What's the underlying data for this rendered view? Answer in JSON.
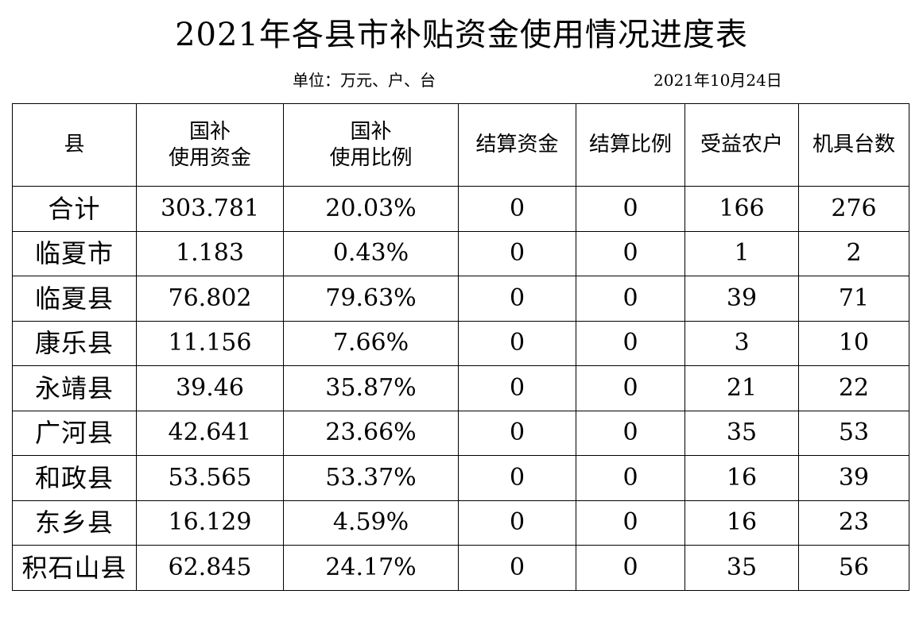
{
  "header": {
    "title": "2021年各县市补贴资金使用情况进度表",
    "unit": "单位：万元、户、台",
    "date": "2021年10月24日"
  },
  "columns": {
    "county": "县",
    "subsidy_used_line1": "国补",
    "subsidy_used_line2": "使用资金",
    "subsidy_ratio_line1": "国补",
    "subsidy_ratio_line2": "使用比例",
    "settled_funds": "结算资金",
    "settled_ratio": "结算比例",
    "beneficiary_households": "受益农户",
    "machine_count": "机具台数"
  },
  "rows": [
    {
      "county": "合计",
      "subsidy_used": "303.781",
      "subsidy_ratio": "20.03%",
      "settled_funds": "0",
      "settled_ratio": "0",
      "households": "166",
      "machines": "276"
    },
    {
      "county": "临夏市",
      "subsidy_used": "1.183",
      "subsidy_ratio": "0.43%",
      "settled_funds": "0",
      "settled_ratio": "0",
      "households": "1",
      "machines": "2"
    },
    {
      "county": "临夏县",
      "subsidy_used": "76.802",
      "subsidy_ratio": "79.63%",
      "settled_funds": "0",
      "settled_ratio": "0",
      "households": "39",
      "machines": "71"
    },
    {
      "county": "康乐县",
      "subsidy_used": "11.156",
      "subsidy_ratio": "7.66%",
      "settled_funds": "0",
      "settled_ratio": "0",
      "households": "3",
      "machines": "10"
    },
    {
      "county": "永靖县",
      "subsidy_used": "39.46",
      "subsidy_ratio": "35.87%",
      "settled_funds": "0",
      "settled_ratio": "0",
      "households": "21",
      "machines": "22"
    },
    {
      "county": "广河县",
      "subsidy_used": "42.641",
      "subsidy_ratio": "23.66%",
      "settled_funds": "0",
      "settled_ratio": "0",
      "households": "35",
      "machines": "53"
    },
    {
      "county": "和政县",
      "subsidy_used": "53.565",
      "subsidy_ratio": "53.37%",
      "settled_funds": "0",
      "settled_ratio": "0",
      "households": "16",
      "machines": "39"
    },
    {
      "county": "东乡县",
      "subsidy_used": "16.129",
      "subsidy_ratio": "4.59%",
      "settled_funds": "0",
      "settled_ratio": "0",
      "households": "16",
      "machines": "23"
    },
    {
      "county": "积石山县",
      "subsidy_used": "62.845",
      "subsidy_ratio": "24.17%",
      "settled_funds": "0",
      "settled_ratio": "0",
      "households": "35",
      "machines": "56"
    }
  ]
}
